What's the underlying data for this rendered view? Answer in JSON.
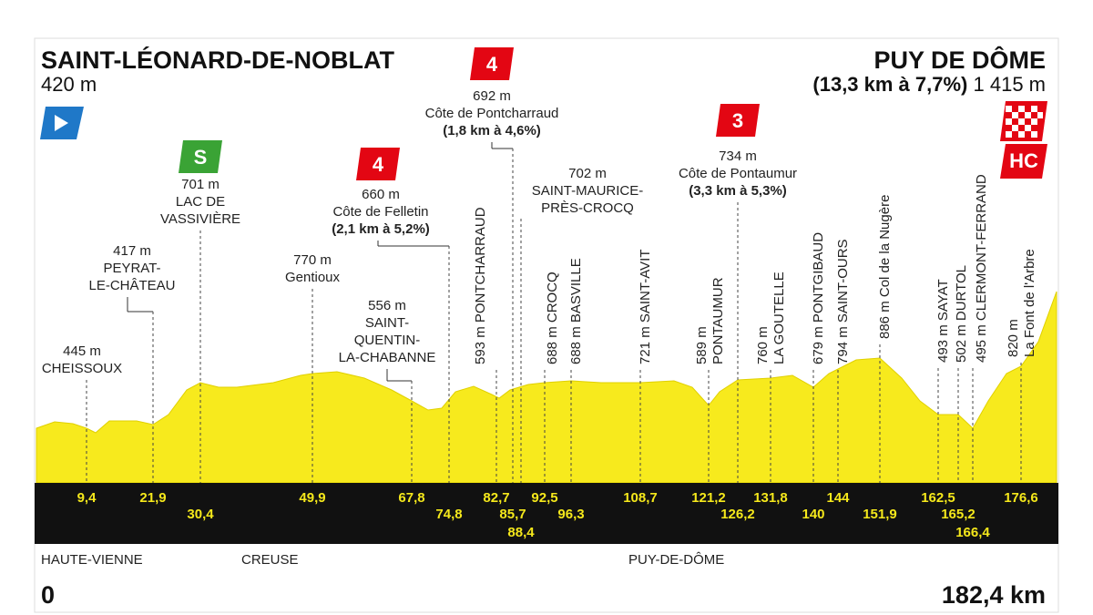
{
  "start": {
    "name": "SAINT-LÉONARD-DE-NOBLAT",
    "altitude": "420 m",
    "distance": "0"
  },
  "finish": {
    "name": "PUY DE DÔME",
    "climb": "(13,3 km à 7,7%)",
    "altitude": "1 415 m",
    "category": "HC",
    "distance": "182,4 km"
  },
  "waypoints": [
    {
      "lines": [
        "445 m",
        "CHEISSOUX"
      ],
      "km": "9,4"
    },
    {
      "lines": [
        "417 m",
        "PEYRAT-",
        "LE-CHÂTEAU"
      ],
      "km": "21,9"
    },
    {
      "category": "S",
      "lines": [
        "701 m",
        "LAC DE",
        "VASSIVIÈRE"
      ],
      "km": "30,4"
    },
    {
      "lines": [
        "770 m",
        "Gentioux"
      ],
      "km": "49,9"
    },
    {
      "lines": [
        "556 m",
        "SAINT-",
        "QUENTIN-",
        "LA-CHABANNE"
      ],
      "km": "67,8"
    },
    {
      "category": "4",
      "lines": [
        "660 m",
        "Côte de Felletin",
        "(2,1 km à 5,2%)"
      ],
      "km": "74,8"
    },
    {
      "lines": [
        "593 m PONTCHARRAUD"
      ],
      "km": "82,7"
    },
    {
      "category": "4",
      "lines": [
        "692 m",
        "Côte de Pontcharraud",
        "(1,8 km à 4,6%)"
      ],
      "km": "85,7"
    },
    {
      "lines": [
        "702 m",
        "SAINT-MAURICE-",
        "PRÈS-CROCQ"
      ],
      "km": "88,4"
    },
    {
      "lines": [
        "688 m CROCQ"
      ],
      "km": "92,5"
    },
    {
      "lines": [
        "688 m BASVILLE"
      ],
      "km": "96,3"
    },
    {
      "lines": [
        "721 m SAINT-AVIT"
      ],
      "km": "108,7"
    },
    {
      "lines": [
        "589 m",
        "PONTAUMUR"
      ],
      "km": "121,2"
    },
    {
      "category": "3",
      "lines": [
        "734 m",
        "Côte de Pontaumur",
        "(3,3 km à 5,3%)"
      ],
      "km": "126,2"
    },
    {
      "lines": [
        "760 m",
        "LA GOUTELLE"
      ],
      "km": "131,8"
    },
    {
      "lines": [
        "679 m PONTGIBAUD"
      ],
      "km": "140"
    },
    {
      "lines": [
        "794 m SAINT-OURS"
      ],
      "km": "144"
    },
    {
      "lines": [
        "886 m Col de la Nugère"
      ],
      "km": "151,9"
    },
    {
      "lines": [
        "493 m SAYAT"
      ],
      "km": "162,5"
    },
    {
      "lines": [
        "502 m DURTOL"
      ],
      "km": "165,2"
    },
    {
      "lines": [
        "495 m CLERMONT-FERRAND"
      ],
      "km": "166,4"
    },
    {
      "lines": [
        "820 m",
        "La Font de l'Arbre"
      ],
      "km": "176,6"
    }
  ],
  "departments": [
    "HAUTE-VIENNE",
    "CREUSE",
    "PUY-DE-DÔME"
  ]
}
